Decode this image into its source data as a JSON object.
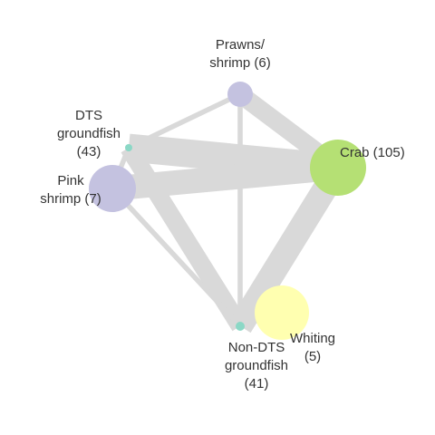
{
  "colors": {
    "edge": "#d9d9d9",
    "label": "#333333",
    "background": "#ffffff"
  },
  "nodes": [
    {
      "id": "prawns",
      "label_lines": [
        "Prawns/",
        "shrimp (6)"
      ],
      "color": "#c4c2e0"
    },
    {
      "id": "crab",
      "label_lines": [
        "Crab (105)"
      ],
      "color": "#b5e074"
    },
    {
      "id": "dts",
      "label_lines": [
        "DTS",
        "groundfish",
        "(43)"
      ],
      "color": "#8bd8c6"
    },
    {
      "id": "pink",
      "label_lines": [
        "Pink",
        "shrimp (7)"
      ],
      "color": "#c4c2e0"
    },
    {
      "id": "whiting",
      "label_lines": [
        "Whiting",
        "(5)"
      ],
      "color": "#ffffb0"
    },
    {
      "id": "nondts",
      "label_lines": [
        "Non-DTS",
        "groundfish",
        "(41)"
      ],
      "color": "#8bd8c6"
    }
  ],
  "edges": [
    {
      "from": "prawns",
      "to": "crab",
      "strength": 5
    },
    {
      "from": "dts",
      "to": "crab",
      "strength": 8
    },
    {
      "from": "pink",
      "to": "crab",
      "strength": 7
    },
    {
      "from": "crab",
      "to": "nondts",
      "strength": 7
    },
    {
      "from": "dts",
      "to": "nondts",
      "strength": 5
    },
    {
      "from": "prawns",
      "to": "nondts",
      "strength": 1
    },
    {
      "from": "prawns",
      "to": "dts",
      "strength": 1
    },
    {
      "from": "pink",
      "to": "nondts",
      "strength": 1
    },
    {
      "from": "pink",
      "to": "dts",
      "strength": 1
    },
    {
      "from": "whiting",
      "to": "nondts",
      "strength": 1
    }
  ]
}
